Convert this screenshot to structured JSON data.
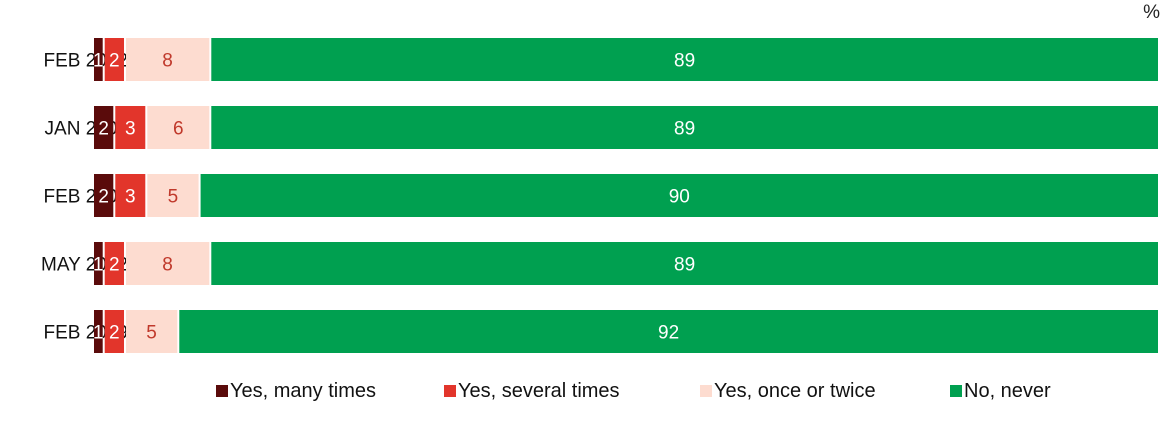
{
  "chart_data": {
    "type": "bar",
    "orientation": "horizontal",
    "stacked": true,
    "unit_label": "%",
    "categories": [
      "FEB 2002",
      "JAN 2005",
      "FEB 2009",
      "MAY 2012",
      "FEB 2019"
    ],
    "series": [
      {
        "name": "Yes, many times",
        "color": "#5a0b0b",
        "values": [
          1,
          2,
          2,
          1,
          1
        ],
        "label_color": "#ffffff"
      },
      {
        "name": "Yes, several times",
        "color": "#e2352b",
        "values": [
          2,
          3,
          3,
          2,
          2
        ],
        "label_color": "#ffffff"
      },
      {
        "name": "Yes, once or twice",
        "color": "#fddcd0",
        "values": [
          8,
          6,
          5,
          8,
          5
        ],
        "label_color": "#c0392b"
      },
      {
        "name": "No, never",
        "color": "#00a050",
        "values": [
          89,
          89,
          90,
          89,
          92
        ],
        "label_color": "#ffffff"
      }
    ],
    "data_labels": [
      [
        "1",
        "2",
        "8",
        "89"
      ],
      [
        "2",
        "3",
        "6",
        "89"
      ],
      [
        "2",
        "3",
        "5",
        "90"
      ],
      [
        "1",
        "2",
        "8",
        "89"
      ],
      [
        "1",
        "2",
        "5",
        "92"
      ]
    ],
    "legend_position": "bottom",
    "grid": false
  }
}
